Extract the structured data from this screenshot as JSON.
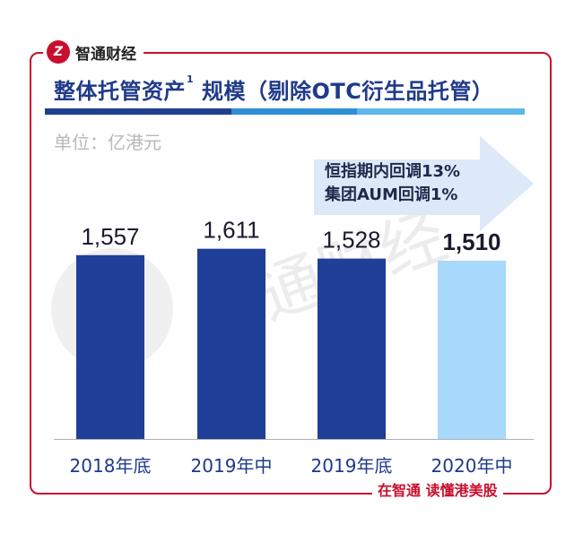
{
  "brand": {
    "logo_text": "Z",
    "name": "智通财经"
  },
  "title": {
    "main": "整体托管资产",
    "footnote": "1",
    "rest": " 规模（剔除OTC衍生品托管）"
  },
  "unit_label": "单位：亿港元",
  "annotation": {
    "line1": "恒指期内回调13%",
    "line2": "集团AUM回调1%"
  },
  "watermark_text": "智通财经",
  "footer": "在智通 读懂港美股",
  "colors": {
    "frame": "#c8102e",
    "bar_dark": "#1f3f99",
    "bar_light": "#a8d8fa",
    "title": "#1f3a8a"
  },
  "chart_data": {
    "type": "bar",
    "categories": [
      "2018年底",
      "2019年中",
      "2019年底",
      "2020年中"
    ],
    "values": [
      1557,
      1611,
      1528,
      1510
    ],
    "value_labels": [
      "1,557",
      "1,611",
      "1,528",
      "1,510"
    ],
    "highlight_index": 3,
    "title": "整体托管资产1 规模（剔除OTC衍生品托管）",
    "ylabel": "单位：亿港元",
    "grid": false,
    "legend": "none"
  }
}
